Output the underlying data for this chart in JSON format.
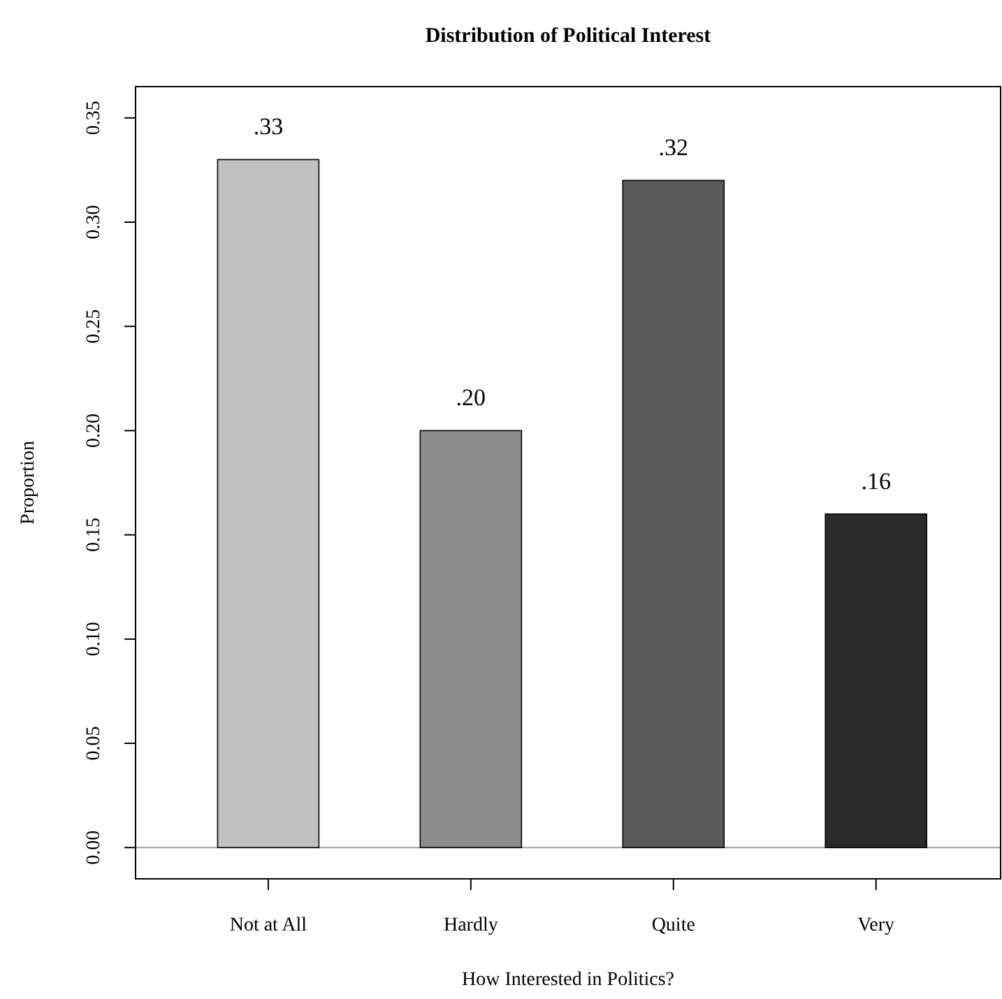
{
  "chart_data": {
    "type": "bar",
    "title": "Distribution of Political Interest",
    "xlabel": "How Interested in Politics?",
    "ylabel": "Proportion",
    "categories": [
      "Not at All",
      "Hardly",
      "Quite",
      "Very"
    ],
    "values": [
      0.33,
      0.2,
      0.32,
      0.16
    ],
    "colors": [
      "#c0c0c0",
      "#8c8c8c",
      "#5a5a5a",
      "#2a2a2a"
    ],
    "value_labels": [
      ".33",
      ".20",
      ".32",
      ".16"
    ],
    "ylim": [
      -0.015,
      0.365
    ],
    "yticks": [
      {
        "value": 0,
        "label": "0.00"
      },
      {
        "value": 0.05,
        "label": "0.05"
      },
      {
        "value": 0.1,
        "label": "0.10"
      },
      {
        "value": 0.15,
        "label": "0.15"
      },
      {
        "value": 0.2,
        "label": "0.20"
      },
      {
        "value": 0.25,
        "label": "0.25"
      },
      {
        "value": 0.3,
        "label": "0.30"
      },
      {
        "value": 0.35,
        "label": "0.35"
      }
    ],
    "ref_lines": [
      {
        "axis": "y",
        "value": 0,
        "color": "#a0a0a0"
      }
    ]
  }
}
